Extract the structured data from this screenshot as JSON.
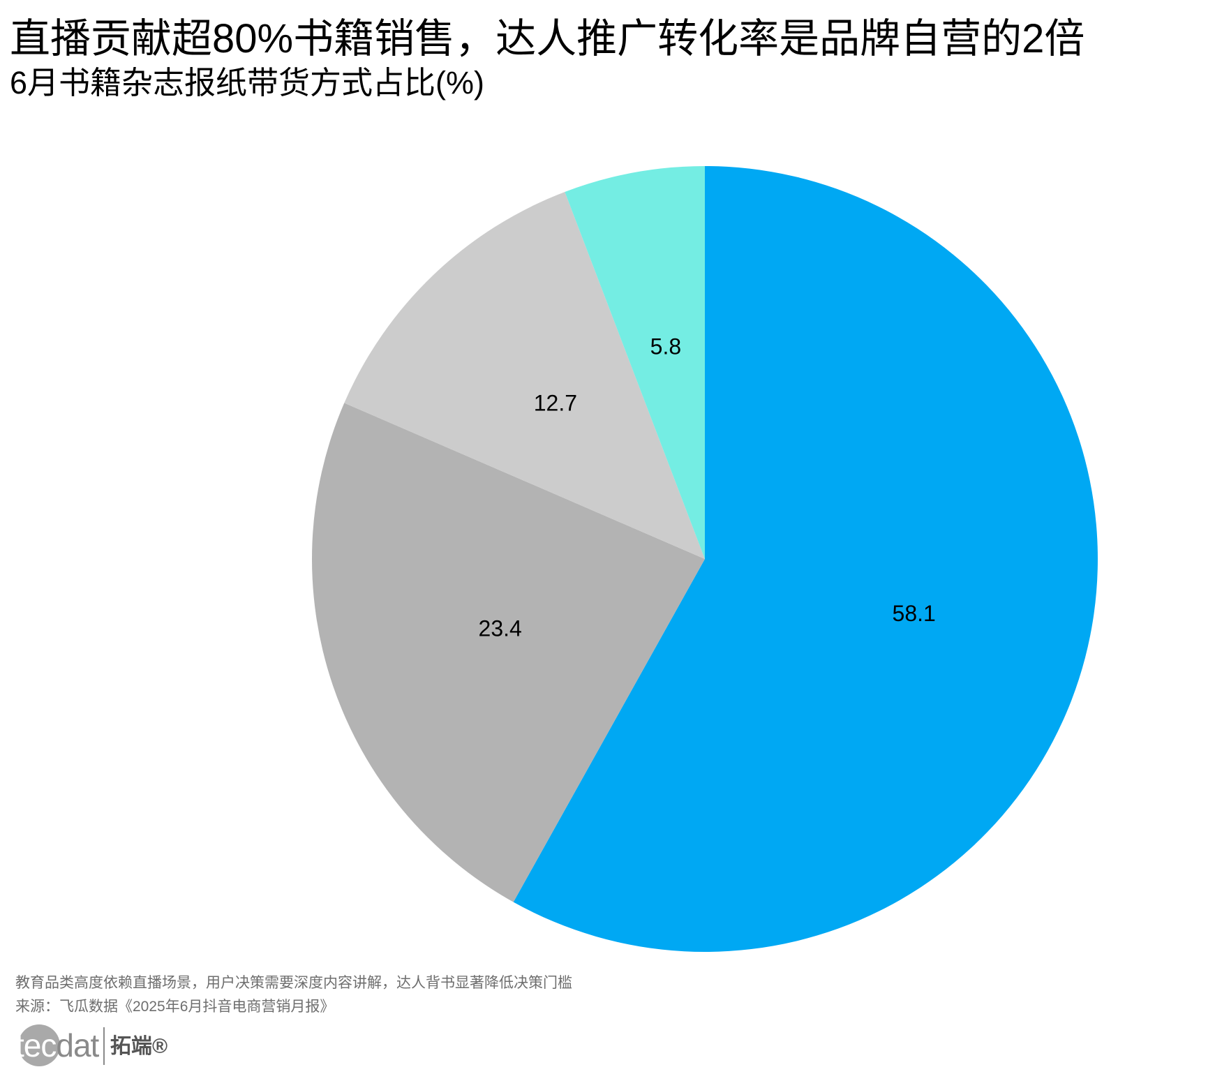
{
  "title": "直播贡献超80%书籍销售，达人推广转化率是品牌自营的2倍",
  "subtitle": "6月书籍杂志报纸带货方式占比(%)",
  "chart_data": {
    "type": "pie",
    "start": "12 o'clock",
    "direction": "clockwise",
    "slices": [
      {
        "value": 58.1,
        "label": "58.1",
        "color": "#00a8f3"
      },
      {
        "value": 23.4,
        "label": "23.4",
        "color": "#b3b3b3"
      },
      {
        "value": 12.7,
        "label": "12.7",
        "color": "#cccccc"
      },
      {
        "value": 5.8,
        "label": "5.8",
        "color": "#74ede3"
      }
    ]
  },
  "footer": {
    "note": "教育品类高度依赖直播场景，用户决策需要深度内容讲解，达人背书显著降低决策门槛",
    "source": "来源：飞瓜数据《2025年6月抖音电商营销月报》"
  },
  "logo": {
    "text_tec": "tec",
    "text_dat": "dat",
    "text_cn": "拓端®"
  }
}
